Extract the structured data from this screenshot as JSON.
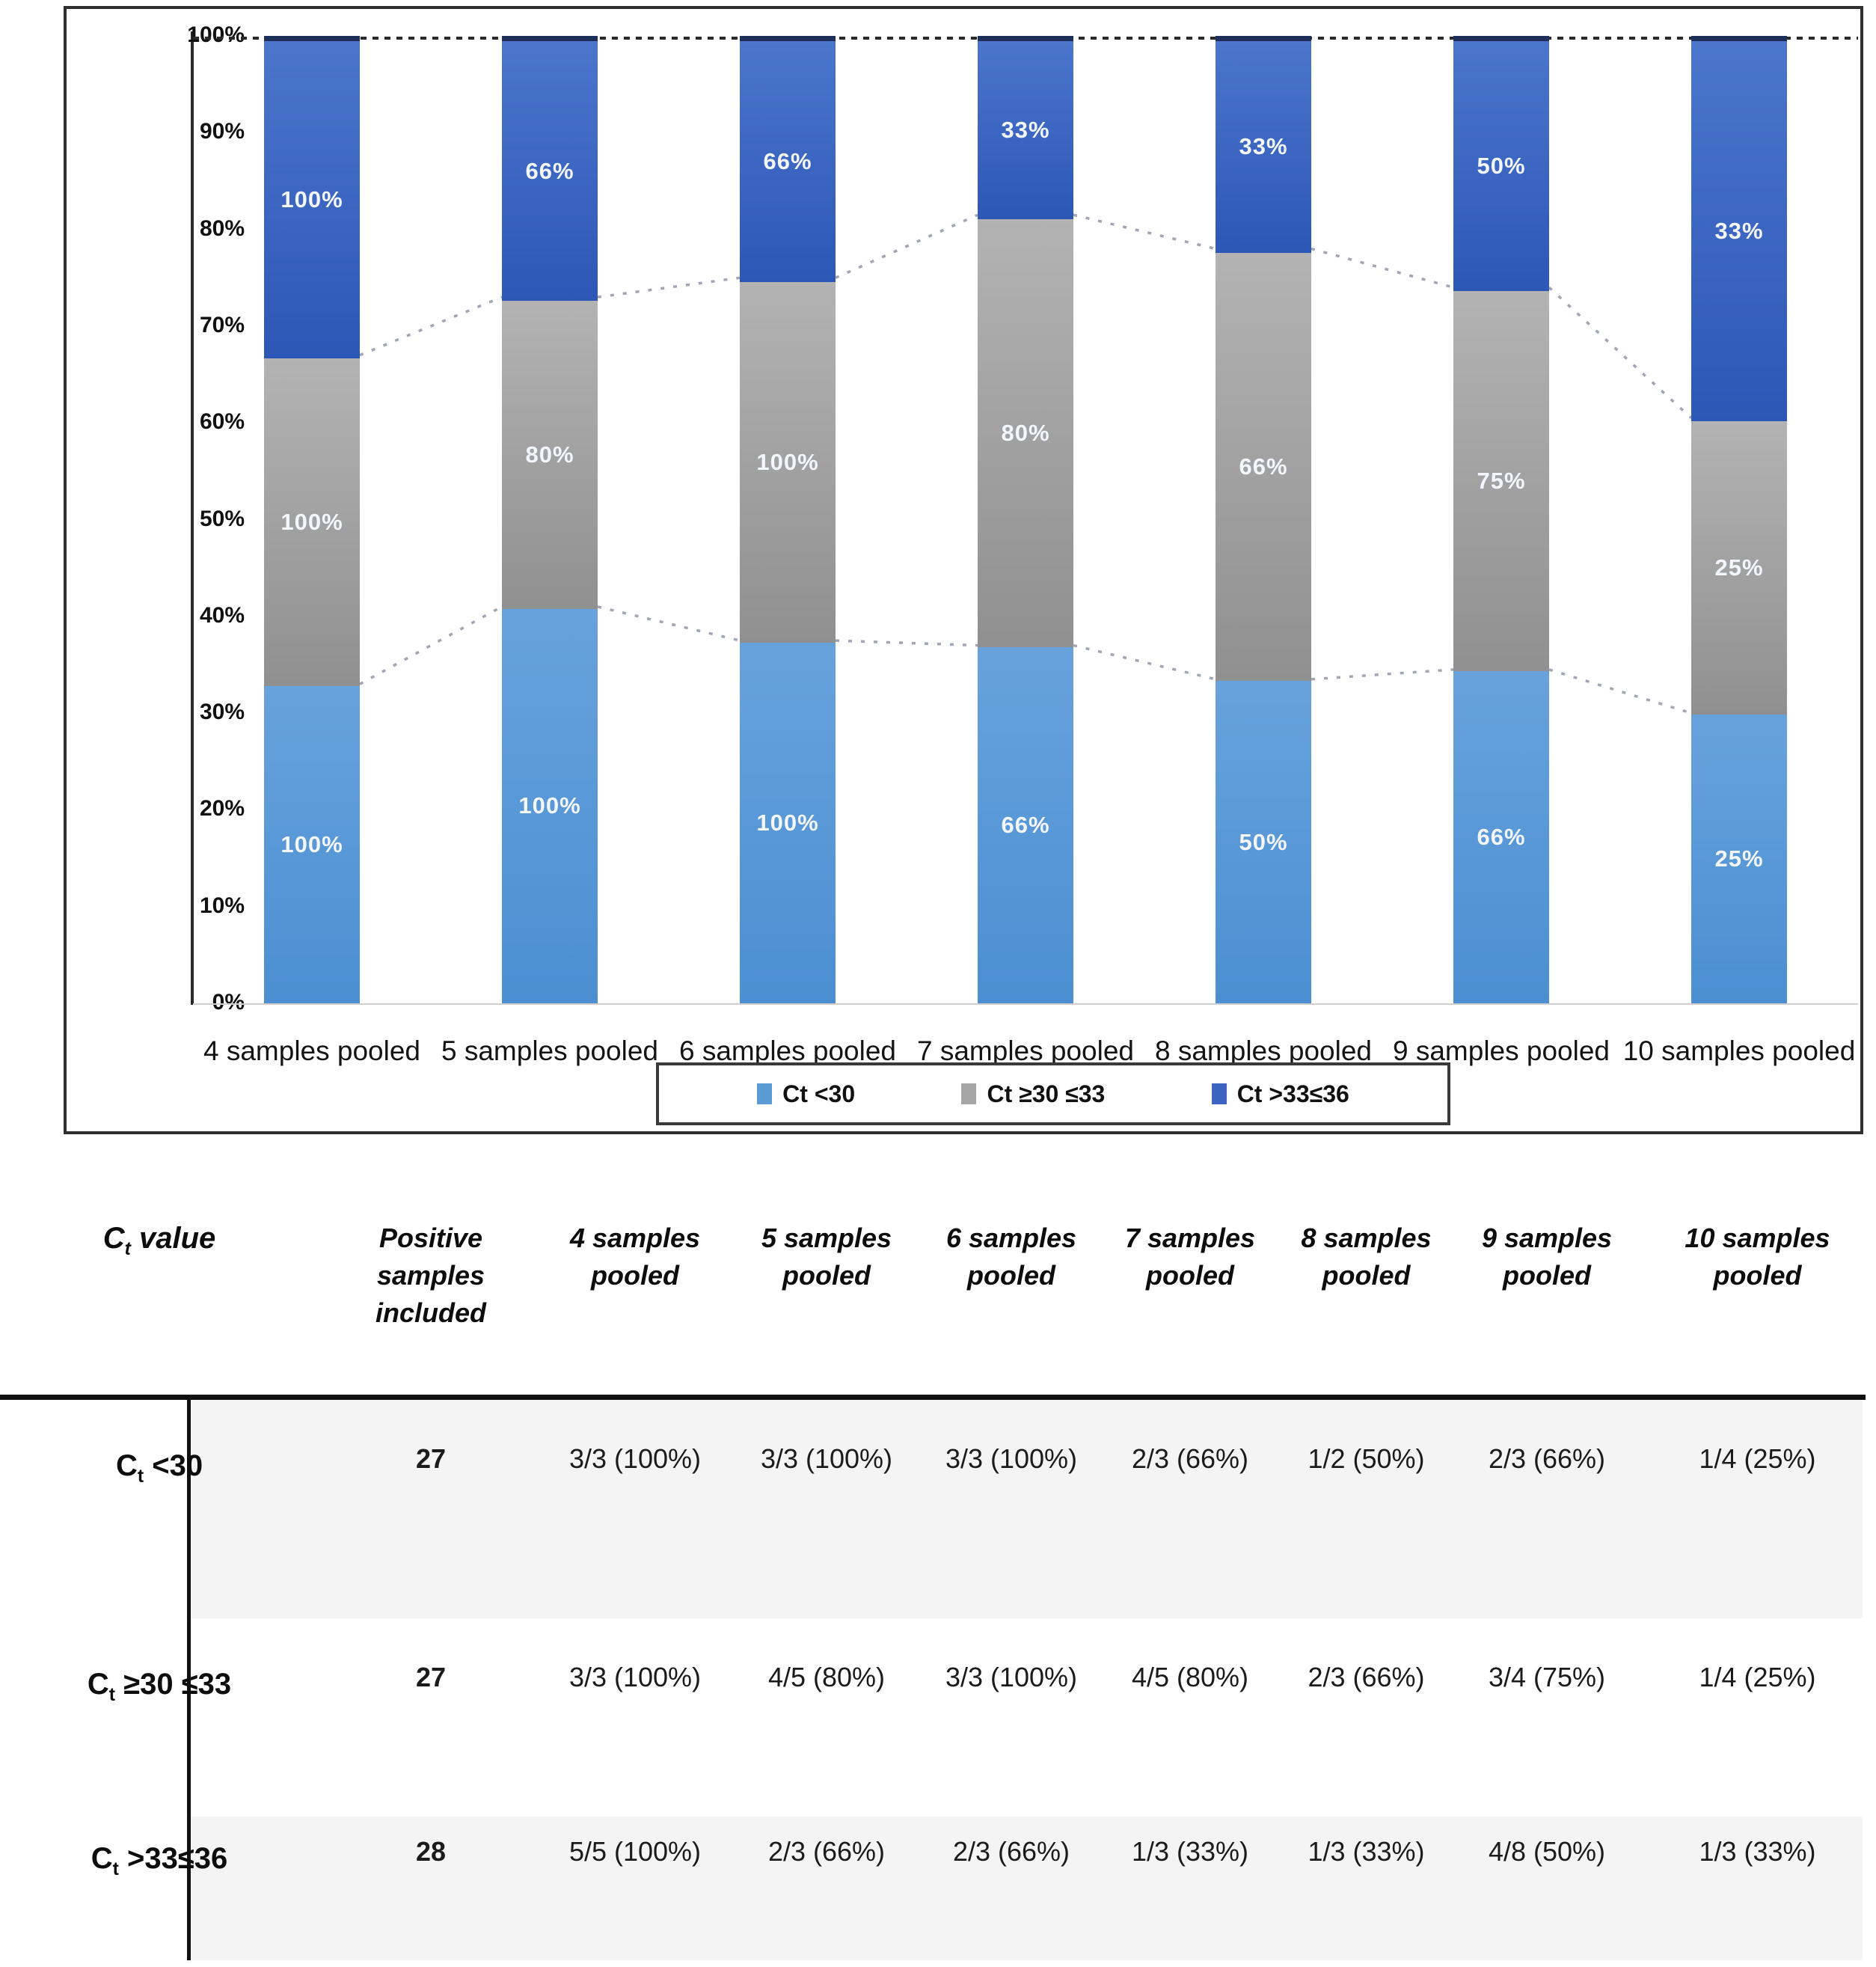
{
  "chart_data": {
    "type": "bar",
    "stacked": true,
    "units": "percent",
    "ylim": [
      0,
      100
    ],
    "y_axis_ticks": [
      "100%",
      "90%",
      "80%",
      "70%",
      "60%",
      "50%",
      "40%",
      "30%",
      "20%",
      "10%",
      "0%"
    ],
    "categories": [
      "4 samples pooled",
      "5 samples pooled",
      "6 samples pooled",
      "7 samples pooled",
      "8 samples pooled",
      "9 samples pooled",
      "10 samples pooled"
    ],
    "series": [
      {
        "name": "Ct <30",
        "color": "#5b9bd5",
        "values": [
          33,
          41,
          37.5,
          37,
          33.5,
          34.5,
          30
        ],
        "segment_labels": [
          "100%",
          "100%",
          "100%",
          "66%",
          "50%",
          "66%",
          "25%"
        ]
      },
      {
        "name": "Ct ≥30 ≤33",
        "color": "#a6a6a6",
        "values": [
          34,
          32,
          37.5,
          44.5,
          44.5,
          39.5,
          30.5
        ],
        "segment_labels": [
          "100%",
          "80%",
          "100%",
          "80%",
          "66%",
          "75%",
          "25%"
        ]
      },
      {
        "name": "Ct >33≤36",
        "color": "#3b64c0",
        "values": [
          33,
          27,
          25,
          18.5,
          22,
          26,
          39.5
        ],
        "segment_labels": [
          "100%",
          "66%",
          "66%",
          "33%",
          "33%",
          "50%",
          "33%"
        ]
      }
    ],
    "legend_position": "bottom",
    "grid": "dashed line at 100% and dashed connectors between stack boundaries"
  },
  "legend": [
    {
      "label": "Ct <30",
      "color": "#5b9bd5"
    },
    {
      "label": "Ct ≥30 ≤33",
      "color": "#a6a6a6"
    },
    {
      "label": "Ct >33≤36",
      "color": "#3b64c0"
    }
  ],
  "table": {
    "header_first": {
      "c": "C",
      "sub": "t",
      "rest": " value"
    },
    "headers": [
      "Positive samples included",
      "4 samples pooled",
      "5 samples pooled",
      "6 samples pooled",
      "7 samples pooled",
      "8 samples pooled",
      "9 samples pooled",
      "10 samples pooled"
    ],
    "rows": [
      {
        "label": {
          "c": "C",
          "sub": "t",
          "rest": " <30"
        },
        "positive_samples": "27",
        "cells": [
          "3/3 (100%)",
          "3/3 (100%)",
          "3/3 (100%)",
          "2/3 (66%)",
          "1/2 (50%)",
          "2/3 (66%)",
          "1/4 (25%)"
        ]
      },
      {
        "label": {
          "c": "C",
          "sub": "t",
          "rest": " ≥30 ≤33"
        },
        "positive_samples": "27",
        "cells": [
          "3/3 (100%)",
          "4/5 (80%)",
          "3/3 (100%)",
          "4/5 (80%)",
          "2/3 (66%)",
          "3/4 (75%)",
          "1/4 (25%)"
        ]
      },
      {
        "label": {
          "c": "C",
          "sub": "t",
          "rest": " >33≤36"
        },
        "positive_samples": "28",
        "cells": [
          "5/5 (100%)",
          "2/3 (66%)",
          "2/3 (66%)",
          "1/3 (33%)",
          "1/3 (33%)",
          "4/8 (50%)",
          "1/3 (33%)"
        ]
      }
    ]
  }
}
